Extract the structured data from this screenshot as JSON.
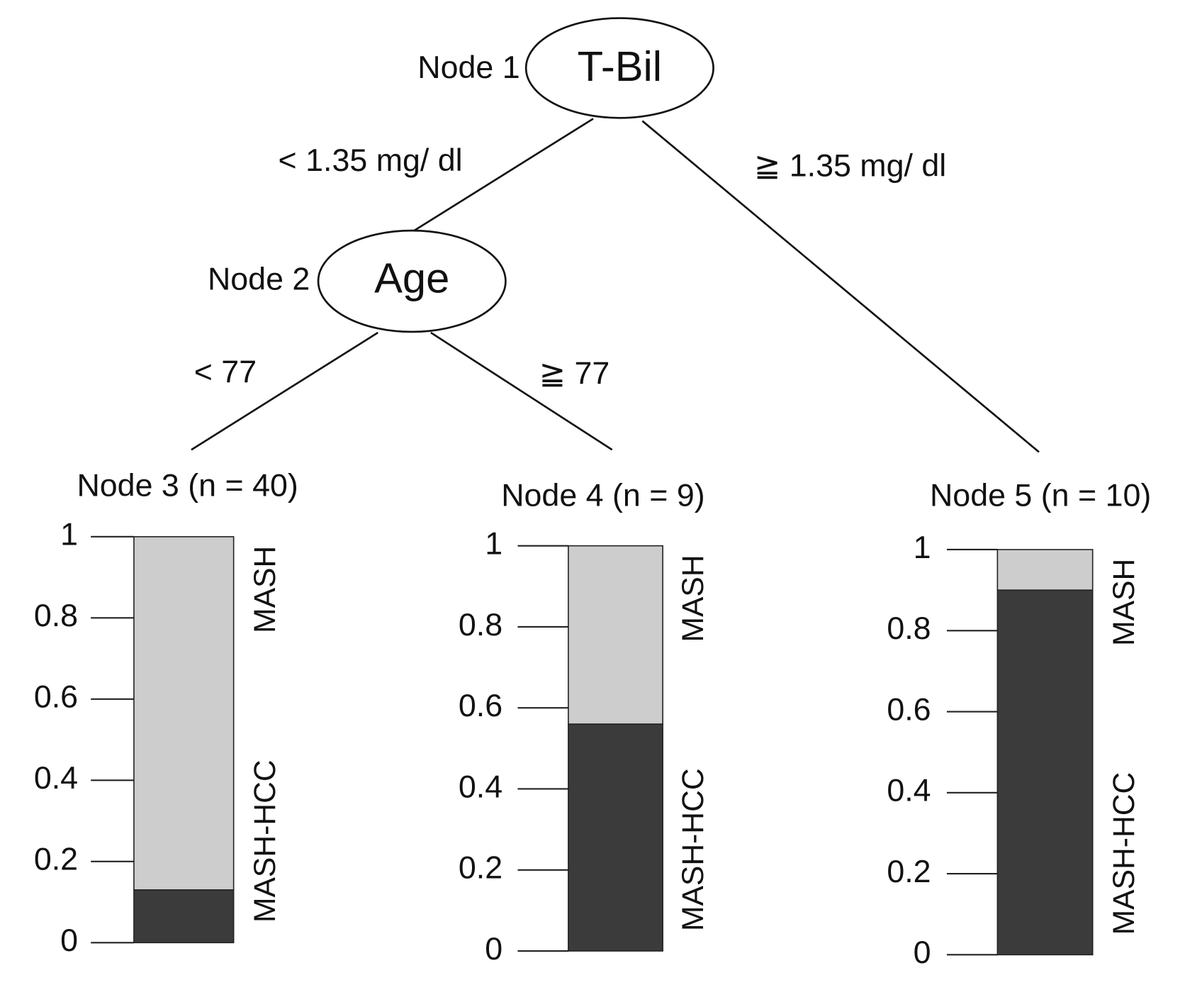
{
  "nodes": [
    {
      "tag": "Node 1",
      "label": "T-Bil"
    },
    {
      "tag": "Node 2",
      "label": "Age"
    }
  ],
  "edges": [
    {
      "label": "< 1.35 mg/ dl"
    },
    {
      "label": "≧ 1.35 mg/ dl"
    },
    {
      "label": "< 77"
    },
    {
      "label": "≧ 77"
    }
  ],
  "leaves": [
    {
      "type": "bar",
      "title": "Node 3 (n = 40)",
      "ylim": [
        0,
        1
      ],
      "yticks": [
        0,
        0.2,
        0.4,
        0.6,
        0.8,
        1
      ],
      "series": [
        {
          "name": "MASH-HCC",
          "color": "#3b3b3b",
          "value": 0.13
        },
        {
          "name": "MASH",
          "color": "#cdcdcd",
          "value": 0.87
        }
      ]
    },
    {
      "type": "bar",
      "title": "Node 4 (n = 9)",
      "ylim": [
        0,
        1
      ],
      "yticks": [
        0,
        0.2,
        0.4,
        0.6,
        0.8,
        1
      ],
      "series": [
        {
          "name": "MASH-HCC",
          "color": "#3b3b3b",
          "value": 0.56
        },
        {
          "name": "MASH",
          "color": "#cdcdcd",
          "value": 0.44
        }
      ]
    },
    {
      "type": "bar",
      "title": "Node 5 (n = 10)",
      "ylim": [
        0,
        1
      ],
      "yticks": [
        0,
        0.2,
        0.4,
        0.6,
        0.8,
        1
      ],
      "series": [
        {
          "name": "MASH-HCC",
          "color": "#3b3b3b",
          "value": 0.9
        },
        {
          "name": "MASH",
          "color": "#cdcdcd",
          "value": 0.1
        }
      ]
    }
  ]
}
